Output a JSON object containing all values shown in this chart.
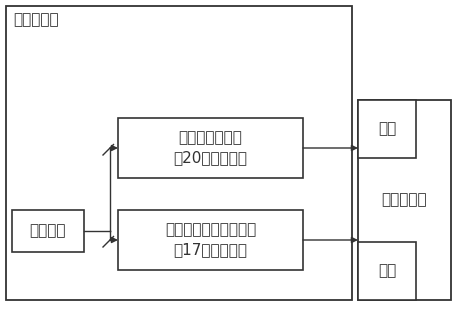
{
  "title_label": "地址发生器",
  "sysclock_label": "系统时钟",
  "normal_gen_line1": "正常地址发生器",
  "normal_gen_line2": "（20位计数器）",
  "self_gen_line1": "自检存储器地址发生器",
  "self_gen_line2": "（17位计数器）",
  "data_label": "数据",
  "addr_label": "地址",
  "self_mem_label": "自检存储器",
  "bg_color": "#ffffff",
  "box_edge_color": "#333333",
  "text_color": "#333333",
  "font_size": 11
}
